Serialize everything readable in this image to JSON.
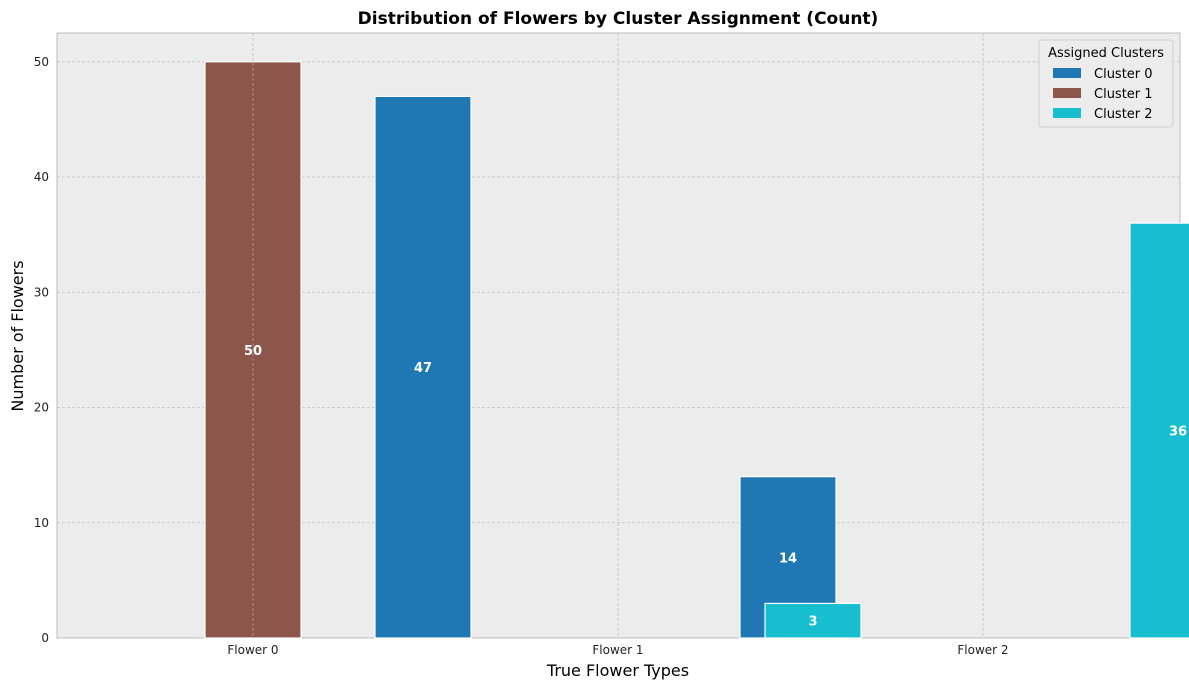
{
  "chart_data": {
    "type": "bar",
    "title": "Distribution of Flowers by Cluster Assignment (Count)",
    "xlabel": "True Flower Types",
    "ylabel": "Number of Flowers",
    "categories": [
      "Flower 0",
      "Flower 1",
      "Flower 2"
    ],
    "ylim": [
      0,
      52.5
    ],
    "yticks": [
      0,
      10,
      20,
      30,
      40,
      50
    ],
    "grid": true,
    "legend": {
      "title": "Assigned Clusters",
      "placement": "top-right"
    },
    "series": [
      {
        "name": "Cluster 0",
        "color": "#1f77b4",
        "values": [
          0,
          47,
          14
        ]
      },
      {
        "name": "Cluster 1",
        "color": "#8c564b",
        "values": [
          50,
          0,
          0
        ]
      },
      {
        "name": "Cluster 2",
        "color": "#17becf",
        "values": [
          0,
          3,
          36
        ]
      }
    ]
  }
}
